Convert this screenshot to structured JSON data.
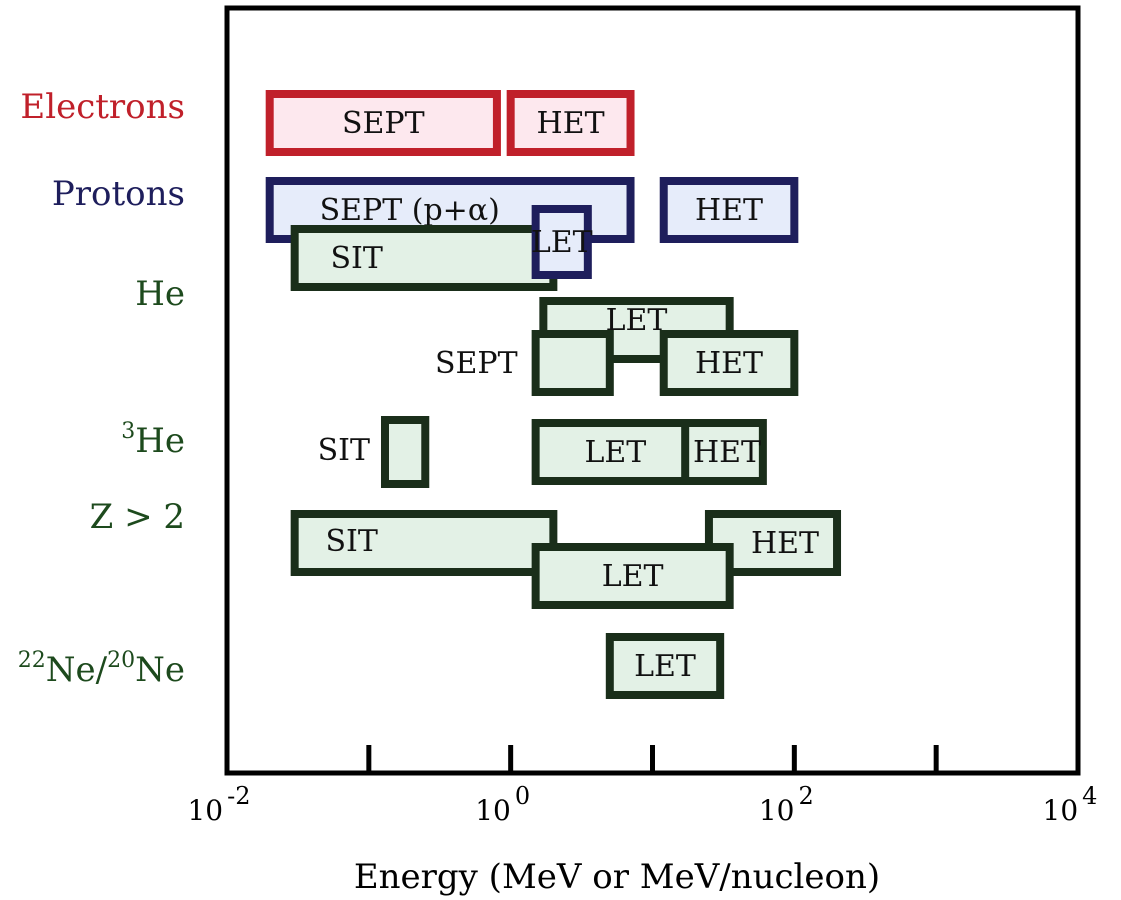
{
  "chart_data": {
    "type": "range-bar",
    "title": "",
    "xlabel": "Energy (MeV or MeV/nucleon)",
    "ylabel": "",
    "x_scale": "log",
    "xlim_log10": [
      -2,
      4
    ],
    "x_ticks": [
      {
        "base": "10",
        "exp": "-2"
      },
      {
        "base": "10",
        "exp": "0"
      },
      {
        "base": "10",
        "exp": "2"
      },
      {
        "base": "10",
        "exp": "4"
      }
    ],
    "rows": [
      {
        "label": "Electrons",
        "color": "#c0202a"
      },
      {
        "label": "Protons",
        "color": "#1e1e5c"
      },
      {
        "label": "He",
        "color": "#1d4a1d"
      },
      {
        "label_sup": "3",
        "label": "He",
        "color": "#1d4a1d"
      },
      {
        "label": "Z > 2",
        "color": "#1d4a1d"
      },
      {
        "label_sup1": "22",
        "label_part1": "Ne/",
        "label_sup2": "20",
        "label_part2": "Ne",
        "color": "#1d4a1d"
      }
    ],
    "bars": [
      {
        "row": 0,
        "instrument": "SEPT",
        "x_range": [
          0.02,
          0.8
        ],
        "label_inside": true
      },
      {
        "row": 0,
        "instrument": "HET",
        "x_range": [
          1.0,
          7.0
        ],
        "label_inside": true
      },
      {
        "row": 1,
        "instrument": "SEPT (p+α)",
        "x_range": [
          0.02,
          7.0
        ],
        "label_inside": true
      },
      {
        "row": 1,
        "instrument": "LET",
        "x_range": [
          1.5,
          3.5
        ],
        "label_inside": true
      },
      {
        "row": 1,
        "instrument": "HET",
        "x_range": [
          12,
          100
        ],
        "label_inside": true
      },
      {
        "row": 2,
        "instrument": "SIT",
        "x_range": [
          0.03,
          2.0
        ],
        "label_inside": true
      },
      {
        "row": 2,
        "instrument": "LET",
        "x_range": [
          1.7,
          35
        ],
        "label_inside": true
      },
      {
        "row": 2,
        "instrument": "SEPT",
        "x_range": [
          1.5,
          5.0
        ],
        "label_inside": false
      },
      {
        "row": 2,
        "instrument": "HET",
        "x_range": [
          12,
          100
        ],
        "label_inside": true
      },
      {
        "row": 3,
        "instrument": "SIT",
        "x_range": [
          0.13,
          0.25
        ],
        "label_inside": false
      },
      {
        "row": 3,
        "instrument": "LET",
        "x_range": [
          1.5,
          20
        ],
        "label_inside": true
      },
      {
        "row": 3,
        "instrument": "HET",
        "x_range": [
          17,
          60
        ],
        "label_inside": true
      },
      {
        "row": 4,
        "instrument": "SIT",
        "x_range": [
          0.03,
          2.0
        ],
        "label_inside": true
      },
      {
        "row": 4,
        "instrument": "HET",
        "x_range": [
          25,
          200
        ],
        "label_inside": true
      },
      {
        "row": 4,
        "instrument": "LET",
        "x_range": [
          1.5,
          35
        ],
        "label_inside": true
      },
      {
        "row": 5,
        "instrument": "LET",
        "x_range": [
          5.0,
          30
        ],
        "label_inside": true
      }
    ],
    "colors": {
      "electron_border": "#c0202a",
      "electron_fill": "#fde8ee",
      "proton_border": "#1e1e5c",
      "proton_fill": "#e6ecfa",
      "ion_border": "#1a2e1a",
      "ion_fill": "#e3f1e6"
    },
    "grid": false
  }
}
